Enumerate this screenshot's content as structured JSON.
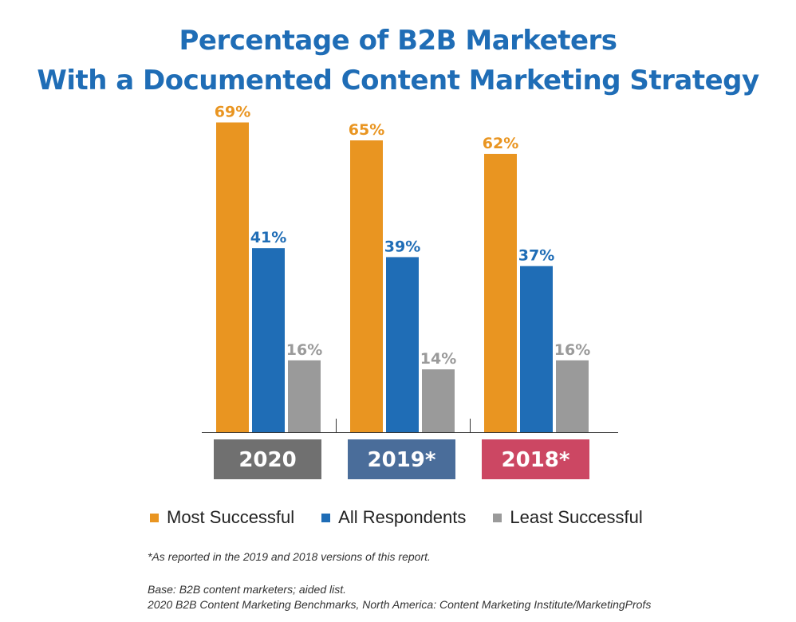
{
  "title_line1": "Percentage of B2B Marketers",
  "title_line2": "With a Documented Content Marketing Strategy",
  "colors": {
    "most_successful": "#e99521",
    "all_respondents": "#1f6db6",
    "least_successful": "#9a9a9a",
    "title": "#1f6db6",
    "year_2020": "#707070",
    "year_2019": "#4a6d9a",
    "year_2018": "#cc4763"
  },
  "chart_data": {
    "type": "bar",
    "categories": [
      "2020",
      "2019*",
      "2018*"
    ],
    "series": [
      {
        "name": "Most Successful",
        "values": [
          69,
          65,
          62
        ],
        "labels": [
          "69%",
          "65%",
          "62%"
        ]
      },
      {
        "name": "All Respondents",
        "values": [
          41,
          39,
          37
        ],
        "labels": [
          "41%",
          "39%",
          "37%"
        ]
      },
      {
        "name": "Least Successful",
        "values": [
          16,
          14,
          16
        ],
        "labels": [
          "16%",
          "14%",
          "16%"
        ]
      }
    ],
    "ylim": [
      0,
      100
    ],
    "grid": false,
    "legend_position": "bottom"
  },
  "legend": {
    "most_successful": "Most Successful",
    "all_respondents": "All Respondents",
    "least_successful": "Least Successful"
  },
  "footnote": "*As reported in the 2019 and 2018 versions of this report.",
  "base": "Base: B2B content marketers; aided list.",
  "source": "2020 B2B Content Marketing Benchmarks, North America: Content Marketing Institute/MarketingProfs"
}
